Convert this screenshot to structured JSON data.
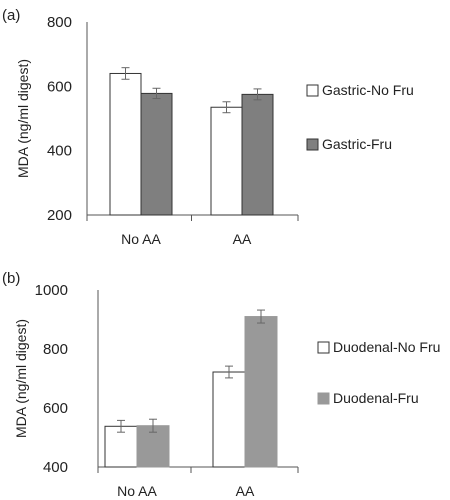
{
  "chart_data": [
    {
      "type": "bar",
      "panel_label": "(a)",
      "categories": [
        "No AA",
        "AA"
      ],
      "series": [
        {
          "name": "Gastric-No Fru",
          "values": [
            640,
            535
          ],
          "errors": [
            18,
            17
          ],
          "fill": "#ffffff",
          "stroke": "#333333"
        },
        {
          "name": "Gastric-Fru",
          "values": [
            578,
            575
          ],
          "errors": [
            16,
            17
          ],
          "fill": "#7f7f7f",
          "stroke": "#333333"
        }
      ],
      "ylabel": "MDA (ng/ml digest)",
      "xlabel": "",
      "ylim": [
        200,
        800
      ],
      "yticks": [
        "200",
        "400",
        "600",
        "800"
      ],
      "grid": false,
      "legend_position": "right"
    },
    {
      "type": "bar",
      "panel_label": "(b)",
      "categories": [
        "No AA",
        "AA"
      ],
      "series": [
        {
          "name": "Duodenal-No Fru",
          "values": [
            538,
            722
          ],
          "errors": [
            20,
            20
          ],
          "fill": "#ffffff",
          "stroke": "#333333"
        },
        {
          "name": "Duodenal-Fru",
          "values": [
            540,
            910
          ],
          "errors": [
            22,
            22
          ],
          "fill": "#999999",
          "stroke": "#999999"
        }
      ],
      "ylabel": "MDA (ng/ml digest)",
      "xlabel": "",
      "ylim": [
        400,
        1000
      ],
      "yticks": [
        "400",
        "600",
        "800",
        "1000"
      ],
      "grid": false,
      "legend_position": "right"
    }
  ]
}
